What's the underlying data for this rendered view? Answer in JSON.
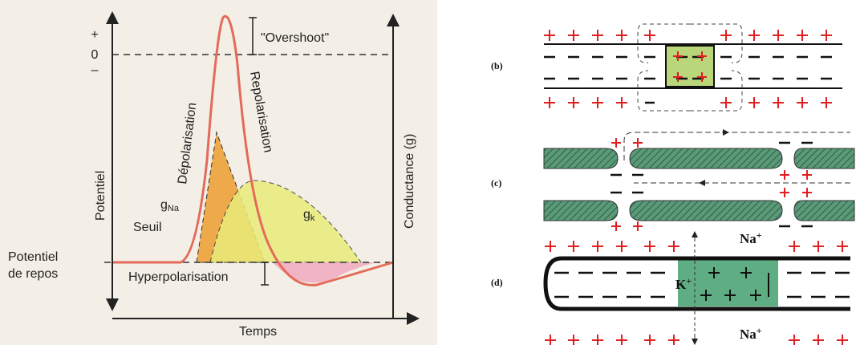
{
  "left_panel": {
    "axis_marks": [
      "+",
      "0",
      "–"
    ],
    "overshoot": "\"Overshoot\"",
    "depolarisation": "Dépolarisation",
    "repolarisation": "Repolarisation",
    "y_label": "Potentiel",
    "y2_label": "Conductance (g)",
    "g_na": {
      "base": "g",
      "sub": "Na"
    },
    "g_k": {
      "base": "g",
      "sub": "k"
    },
    "threshold": "Seuil",
    "resting_potential": [
      "Potentiel",
      "de repos"
    ],
    "hyperpolarisation": "Hyperpolarisation",
    "x_label": "Temps"
  },
  "right_panel": {
    "panels": [
      {
        "label": "(b)"
      },
      {
        "label": "(c)"
      },
      {
        "label": "(d)",
        "ions": [
          {
            "base": "Na",
            "sup": "+"
          },
          {
            "base": "Na",
            "sup": "+"
          },
          {
            "base": "K",
            "sup": "+"
          }
        ]
      }
    ]
  }
}
